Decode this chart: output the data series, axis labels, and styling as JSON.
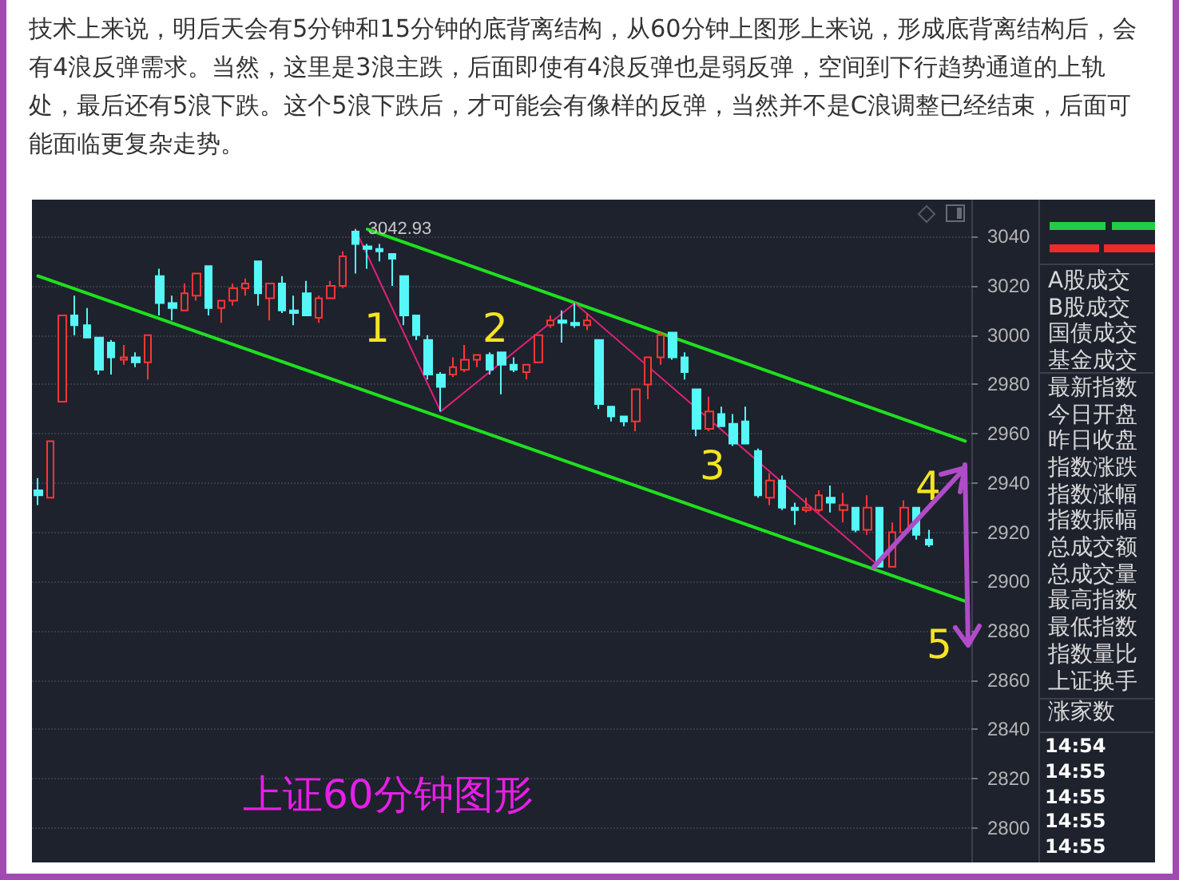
{
  "chart_data": {
    "type": "candlestick",
    "title": "上证60分钟图形",
    "annotations": [
      "技术上来说，明后天会有5分钟和15分钟的底背离结构，从60分钟上图形上来说，形成底背离结构后，会有4浪反弹需求。当然，这里是3浪主跌，后面即使有4浪反弹也是弱反弹，空间到下行趋势通道的上轨处，最后还有5浪下跌。这个5浪下跌后，才可能会有像样的反弹，当然并不是C浪调整已经结束，后面可能面临更复杂走势。",
      "1",
      "2",
      "3",
      "4",
      "5",
      "A股成交",
      "B股成交",
      "国债成交",
      "基金成交",
      "最新指数",
      "今日开盘",
      "昨日收盘",
      "指数涨跌",
      "指数涨幅",
      "指数振幅",
      "总成交额",
      "总成交量",
      "最高指数",
      "最低指数",
      "指数量比",
      "上证换手",
      "涨家数",
      "14:54",
      "14:55",
      "14:55",
      "14:55",
      "14:55",
      "3042.93"
    ],
    "categories": [
      null,
      null,
      null,
      null,
      null,
      null,
      null,
      null,
      null,
      null,
      null,
      null,
      null,
      null,
      null,
      null,
      null,
      null,
      null,
      null,
      null,
      null,
      null,
      null,
      null,
      null,
      null,
      null,
      null,
      null,
      null,
      null,
      null,
      null,
      null,
      null,
      null,
      null,
      null,
      null,
      null,
      null,
      null,
      null,
      null,
      null,
      null,
      null,
      null,
      null,
      null,
      null,
      null,
      null,
      null,
      null,
      null,
      null,
      null,
      null,
      null,
      null,
      null,
      null,
      null,
      null,
      null,
      null,
      null,
      null,
      null,
      null,
      null,
      null,
      null,
      null,
      null
    ],
    "ohlc": [
      [
        2937,
        2942,
        2931,
        2935
      ],
      [
        2934,
        2957,
        2934,
        2957
      ],
      [
        2973,
        3008,
        2973,
        3008
      ],
      [
        3008,
        3016,
        3000,
        3004
      ],
      [
        3004,
        3011,
        2999,
        2999
      ],
      [
        2999,
        2999,
        2984,
        2986
      ],
      [
        2997,
        2998,
        2984,
        2991
      ],
      [
        2990,
        2996,
        2988,
        2991
      ],
      [
        2991,
        2993,
        2987,
        2989
      ],
      [
        2989,
        3000,
        2982,
        3000
      ],
      [
        3024,
        3027,
        3008,
        3013
      ],
      [
        3013,
        3016,
        3006,
        3011
      ],
      [
        3010,
        3021,
        3010,
        3017
      ],
      [
        3016,
        3025,
        3014,
        3025
      ],
      [
        3028,
        3028,
        3008,
        3011
      ],
      [
        3011,
        3014,
        3005,
        3014
      ],
      [
        3014,
        3021,
        3012,
        3019
      ],
      [
        3019,
        3023,
        3016,
        3021
      ],
      [
        3030,
        3030,
        3012,
        3017
      ],
      [
        3015,
        3021,
        3006,
        3021
      ],
      [
        3021,
        3024,
        3009,
        3010
      ],
      [
        3010,
        3016,
        3004,
        3009
      ],
      [
        3017,
        3022,
        3008,
        3008
      ],
      [
        3007,
        3016,
        3005,
        3015
      ],
      [
        3015,
        3022,
        3015,
        3020
      ],
      [
        3020,
        3034,
        3019,
        3032
      ],
      [
        3042,
        3042.93,
        3025,
        3037
      ],
      [
        3036,
        3037,
        3027,
        3035
      ],
      [
        3035,
        3037,
        3030,
        3034
      ],
      [
        3033,
        3033,
        3020,
        3031
      ],
      [
        3024,
        3024,
        3004,
        3008
      ],
      [
        3008,
        3008,
        2998,
        3000
      ],
      [
        2998,
        3000,
        2982,
        2984
      ],
      [
        2984,
        2985,
        2969,
        2979
      ],
      [
        2984,
        2991,
        2983,
        2987
      ],
      [
        2986,
        2996,
        2985,
        2990
      ],
      [
        2990,
        2992,
        2987,
        2992
      ],
      [
        2992,
        2993,
        2984,
        2986
      ],
      [
        2993,
        2993,
        2976,
        2988
      ],
      [
        2988,
        2991,
        2985,
        2986
      ],
      [
        2985,
        2988,
        2982,
        2988
      ],
      [
        2989,
        3000,
        2989,
        3000
      ],
      [
        3004,
        3008,
        3003,
        3006
      ],
      [
        3006,
        3010,
        2997,
        3005
      ],
      [
        3005,
        3013,
        3003,
        3004
      ],
      [
        3004,
        3009,
        3002,
        3006
      ],
      [
        2998,
        2998,
        2970,
        2972
      ],
      [
        2971,
        2971,
        2965,
        2967
      ],
      [
        2967,
        2967,
        2963,
        2965
      ],
      [
        2965,
        2978,
        2961,
        2978
      ],
      [
        2980,
        2991,
        2974,
        2991
      ],
      [
        2991,
        3001,
        2988,
        3000
      ],
      [
        3001,
        3001,
        2990,
        2991
      ],
      [
        2991,
        2993,
        2982,
        2985
      ],
      [
        2978,
        2978,
        2959,
        2962
      ],
      [
        2962,
        2975,
        2961,
        2969
      ],
      [
        2968,
        2971,
        2963,
        2963
      ],
      [
        2964,
        2968,
        2955,
        2956
      ],
      [
        2965,
        2971,
        2956,
        2956
      ],
      [
        2953,
        2954,
        2934,
        2935
      ],
      [
        2934,
        2944,
        2931,
        2941
      ],
      [
        2941,
        2943,
        2929,
        2930
      ],
      [
        2930,
        2932,
        2923,
        2929
      ],
      [
        2929,
        2934,
        2928,
        2930
      ],
      [
        2929,
        2937,
        2928,
        2935
      ],
      [
        2934,
        2939,
        2928,
        2932
      ],
      [
        2929,
        2936,
        2924,
        2931
      ],
      [
        2930,
        2930,
        2920,
        2921
      ],
      [
        2921,
        2935,
        2919,
        2930
      ],
      [
        2930,
        2930,
        2906,
        2906
      ],
      [
        2906,
        2924,
        2906,
        2920
      ],
      [
        2920,
        2933,
        2918,
        2930
      ],
      [
        2930,
        2930,
        2917,
        2919
      ],
      [
        2917,
        2921,
        2914,
        2915
      ],
      null,
      null,
      null
    ],
    "series": [
      {
        "type": "line",
        "color": "#1ee01e",
        "values": [
          3024,
          null,
          null,
          null,
          null,
          null,
          null,
          null,
          null,
          null,
          null,
          null,
          null,
          null,
          null,
          null,
          null,
          null,
          null,
          null,
          null,
          null,
          null,
          null,
          null,
          null,
          null,
          null,
          null,
          null,
          null,
          null,
          null,
          null,
          null,
          null,
          null,
          null,
          null,
          null,
          null,
          null,
          null,
          null,
          null,
          null,
          null,
          null,
          null,
          null,
          null,
          null,
          null,
          null,
          null,
          null,
          null,
          null,
          null,
          null,
          null,
          null,
          null,
          null,
          null,
          null,
          null,
          null,
          null,
          null,
          null,
          null,
          null,
          null,
          null,
          null,
          2892
        ]
      },
      {
        "type": "line",
        "color": "#1ee01e",
        "values": [
          null,
          null,
          null,
          null,
          null,
          null,
          null,
          null,
          null,
          null,
          null,
          null,
          null,
          null,
          null,
          null,
          null,
          null,
          null,
          null,
          null,
          null,
          null,
          null,
          null,
          null,
          null,
          3043,
          null,
          null,
          null,
          null,
          null,
          null,
          null,
          null,
          null,
          null,
          null,
          null,
          null,
          null,
          null,
          null,
          null,
          null,
          null,
          null,
          null,
          null,
          null,
          null,
          null,
          null,
          null,
          null,
          null,
          null,
          null,
          null,
          null,
          null,
          null,
          null,
          null,
          null,
          null,
          null,
          null,
          null,
          null,
          null,
          null,
          null,
          null,
          null,
          2957
        ]
      },
      {
        "type": "line",
        "color": "#e0207a",
        "values": [
          null,
          null,
          null,
          null,
          null,
          null,
          null,
          null,
          null,
          null,
          null,
          null,
          null,
          null,
          null,
          null,
          null,
          null,
          null,
          null,
          null,
          null,
          null,
          null,
          null,
          null,
          3043,
          null,
          null,
          null,
          null,
          null,
          null,
          2969,
          null,
          null,
          null,
          null,
          null,
          null,
          null,
          null,
          null,
          null,
          3013,
          null,
          null,
          null,
          null,
          null,
          null,
          null,
          null,
          null,
          null,
          null,
          null,
          null,
          null,
          null,
          null,
          null,
          null,
          null,
          null,
          null,
          null,
          null,
          null,
          2906,
          null,
          null,
          null,
          null,
          null,
          null,
          null
        ]
      }
    ],
    "ylim": [
      2786,
      3055
    ],
    "yticks": [
      2800,
      2820,
      2840,
      2860,
      2880,
      2900,
      2920,
      2940,
      2960,
      2980,
      3000,
      3020,
      3040
    ],
    "grid": "y",
    "tick_labels": "y",
    "line_style": "solid"
  }
}
